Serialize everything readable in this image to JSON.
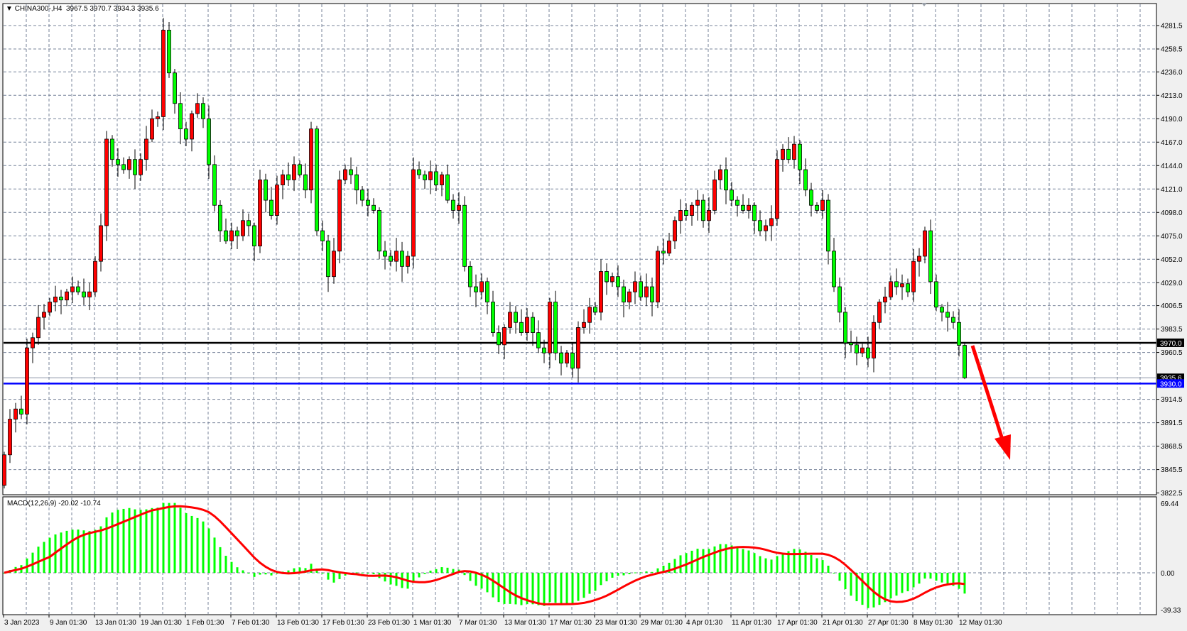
{
  "header": {
    "symbol_timeframe": "CHINA300-,H4",
    "ohlc_readout": "3967.5 3970.7 3934.3 3935.6"
  },
  "macd_panel": {
    "label": "MACD(12,26,9) -20.02 -10.74",
    "params": [
      12,
      26,
      9
    ],
    "main_value": -20.02,
    "signal_value": -10.74,
    "axis_labels": [
      "69.44",
      "0.00",
      "-39.33"
    ],
    "ylim": [
      -39.33,
      69.44
    ]
  },
  "colors": {
    "bull_candle": "#ff0000",
    "bear_candle": "#00ff00",
    "histogram": "#00ff00",
    "signal_line": "#ff0000",
    "resistance_line": "#000000",
    "support_line": "#0000ff",
    "arrow": "#ff0000",
    "grid": "#77839a"
  },
  "chart_data": {
    "type": "candlestick",
    "title": "",
    "ylim": [
      3822.5,
      4281.5
    ],
    "price_axis_labels": [
      "4281.5",
      "4258.5",
      "4236.0",
      "4213.0",
      "4190.0",
      "4167.0",
      "4144.0",
      "4121.0",
      "4098.0",
      "4075.0",
      "4052.0",
      "4029.0",
      "4006.5",
      "3983.5",
      "3960.5",
      "3914.5",
      "3891.5",
      "3868.5",
      "3845.5",
      "3822.5"
    ],
    "price_axis_values": [
      4281.5,
      4258.5,
      4236.0,
      4213.0,
      4190.0,
      4167.0,
      4144.0,
      4121.0,
      4098.0,
      4075.0,
      4052.0,
      4029.0,
      4006.5,
      3983.5,
      3960.5,
      3914.5,
      3891.5,
      3868.5,
      3845.5,
      3822.5
    ],
    "time_axis_labels": [
      "3 Jan 2023",
      "9 Jan 01:30",
      "13 Jan 01:30",
      "19 Jan 01:30",
      "1 Feb 01:30",
      "7 Feb 01:30",
      "13 Feb 01:30",
      "17 Feb 01:30",
      "23 Feb 01:30",
      "1 Mar 01:30",
      "7 Mar 01:30",
      "13 Mar 01:30",
      "17 Mar 01:30",
      "23 Mar 01:30",
      "29 Mar 01:30",
      "4 Apr 01:30",
      "11 Apr 01:30",
      "17 Apr 01:30",
      "21 Apr 01:30",
      "27 Apr 01:30",
      "8 May 01:30",
      "12 May 01:30"
    ],
    "first_open": 3830,
    "closes": [
      3860,
      3895,
      3905,
      3900,
      3965,
      3975,
      3995,
      4000,
      4010,
      4015,
      4012,
      4020,
      4025,
      4020,
      4015,
      4020,
      4050,
      4085,
      4170,
      4150,
      4145,
      4140,
      4150,
      4135,
      4150,
      4170,
      4190,
      4192,
      4277,
      4235,
      4205,
      4180,
      4170,
      4195,
      4205,
      4190,
      4145,
      4105,
      4080,
      4070,
      4080,
      4075,
      4090,
      4085,
      4065,
      4130,
      4110,
      4095,
      4125,
      4135,
      4130,
      4145,
      4135,
      4120,
      4180,
      4080,
      4070,
      4035,
      4060,
      4130,
      4140,
      4135,
      4120,
      4110,
      4105,
      4100,
      4060,
      4055,
      4050,
      4060,
      4045,
      4055,
      4140,
      4135,
      4130,
      4138,
      4125,
      4135,
      4110,
      4100,
      4105,
      4045,
      4025,
      4020,
      4030,
      4010,
      3980,
      3968,
      3985,
      4000,
      3990,
      3980,
      3995,
      3980,
      3965,
      3960,
      4010,
      3960,
      3950,
      3960,
      3945,
      3985,
      3990,
      4005,
      4000,
      4040,
      4030,
      4035,
      4025,
      4010,
      4020,
      4030,
      4015,
      4025,
      4010,
      4060,
      4058,
      4070,
      4090,
      4100,
      4095,
      4105,
      4110,
      4090,
      4100,
      4130,
      4140,
      4120,
      4110,
      4105,
      4100,
      4105,
      4090,
      4080,
      4085,
      4092,
      4150,
      4160,
      4150,
      4165,
      4140,
      4120,
      4105,
      4100,
      4110,
      4060,
      4025,
      4000,
      3970,
      3968,
      3960,
      3965,
      3955,
      3990,
      4010,
      4015,
      4030,
      4025,
      4028,
      4020,
      4050,
      4055,
      4080,
      4030,
      4005,
      4000,
      3995,
      3990,
      3967.5,
      3935.6
    ],
    "last_candle": {
      "open": 3967.5,
      "high": 3970.7,
      "low": 3934.3,
      "close": 3935.6
    },
    "horizontal_lines": [
      {
        "price": 3970.0,
        "label": "3970.0",
        "color": "#000000"
      },
      {
        "price": 3930.0,
        "label": "3930.0",
        "color": "#0000ff"
      }
    ],
    "current_price_label": "3935.6",
    "current_price": 3935.6,
    "annotation": "red arrow pointing down from 3970 level",
    "grid": true
  }
}
